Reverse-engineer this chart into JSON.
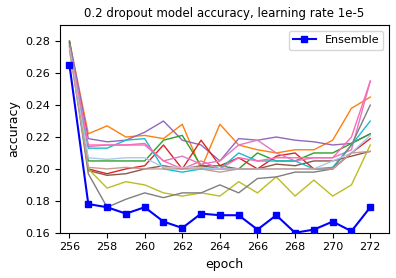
{
  "title": "0.2 dropout model accuracy, learning rate 1e-5",
  "xlabel": "epoch",
  "ylabel": "accuracy",
  "xlim": [
    255.5,
    273.0
  ],
  "ylim": [
    0.16,
    0.29
  ],
  "yticks": [
    0.16,
    0.18,
    0.2,
    0.22,
    0.24,
    0.26,
    0.28
  ],
  "xticks": [
    256,
    258,
    260,
    262,
    264,
    266,
    268,
    270,
    272
  ],
  "epochs": [
    256,
    257,
    258,
    259,
    260,
    261,
    262,
    263,
    264,
    265,
    266,
    267,
    268,
    269,
    270,
    271,
    272
  ],
  "ensemble": [
    0.265,
    0.178,
    0.176,
    0.172,
    0.176,
    0.167,
    0.163,
    0.172,
    0.171,
    0.171,
    0.162,
    0.171,
    0.16,
    0.162,
    0.167,
    0.161,
    0.176
  ],
  "individual_lines": [
    {
      "color": "#ff7f0e",
      "values": [
        0.28,
        0.222,
        0.227,
        0.22,
        0.221,
        0.219,
        0.228,
        0.2,
        0.228,
        0.215,
        0.212,
        0.21,
        0.212,
        0.212,
        0.218,
        0.238,
        0.245
      ]
    },
    {
      "color": "#9467bd",
      "values": [
        0.28,
        0.219,
        0.217,
        0.218,
        0.223,
        0.23,
        0.218,
        0.215,
        0.205,
        0.219,
        0.218,
        0.22,
        0.218,
        0.217,
        0.215,
        0.216,
        0.222
      ]
    },
    {
      "color": "#2ca02c",
      "values": [
        0.28,
        0.205,
        0.205,
        0.205,
        0.205,
        0.218,
        0.221,
        0.202,
        0.202,
        0.2,
        0.21,
        0.205,
        0.205,
        0.21,
        0.21,
        0.216,
        0.222
      ]
    },
    {
      "color": "#d62728",
      "values": [
        0.279,
        0.2,
        0.197,
        0.2,
        0.202,
        0.215,
        0.2,
        0.218,
        0.202,
        0.207,
        0.2,
        0.208,
        0.21,
        0.2,
        0.2,
        0.21,
        0.219
      ]
    },
    {
      "color": "#8c564b",
      "values": [
        0.279,
        0.199,
        0.196,
        0.197,
        0.2,
        0.202,
        0.2,
        0.202,
        0.2,
        0.2,
        0.2,
        0.203,
        0.202,
        0.205,
        0.205,
        0.208,
        0.211
      ]
    },
    {
      "color": "#e377c2",
      "values": [
        0.278,
        0.214,
        0.215,
        0.215,
        0.215,
        0.205,
        0.208,
        0.203,
        0.205,
        0.215,
        0.218,
        0.21,
        0.205,
        0.207,
        0.207,
        0.212,
        0.255
      ]
    },
    {
      "color": "#17becf",
      "values": [
        0.278,
        0.213,
        0.213,
        0.218,
        0.219,
        0.2,
        0.198,
        0.2,
        0.2,
        0.21,
        0.205,
        0.205,
        0.205,
        0.2,
        0.201,
        0.215,
        0.23
      ]
    },
    {
      "color": "#bcbd22",
      "values": [
        0.277,
        0.2,
        0.188,
        0.192,
        0.19,
        0.185,
        0.183,
        0.185,
        0.183,
        0.192,
        0.185,
        0.195,
        0.183,
        0.193,
        0.183,
        0.19,
        0.215
      ]
    },
    {
      "color": "#7f7f7f",
      "values": [
        0.277,
        0.197,
        0.176,
        0.181,
        0.185,
        0.182,
        0.185,
        0.185,
        0.19,
        0.185,
        0.194,
        0.195,
        0.198,
        0.198,
        0.2,
        0.215,
        0.24
      ]
    },
    {
      "color": "#ff69b4",
      "values": [
        0.276,
        0.215,
        0.215,
        0.215,
        0.216,
        0.205,
        0.2,
        0.205,
        0.2,
        0.207,
        0.205,
        0.207,
        0.207,
        0.207,
        0.207,
        0.22,
        0.255
      ]
    },
    {
      "color": "#aec7e8",
      "values": [
        0.275,
        0.207,
        0.206,
        0.207,
        0.207,
        0.201,
        0.201,
        0.201,
        0.2,
        0.2,
        0.2,
        0.2,
        0.2,
        0.2,
        0.205,
        0.21,
        0.221
      ]
    },
    {
      "color": "#c49c94",
      "values": [
        0.274,
        0.201,
        0.2,
        0.201,
        0.2,
        0.2,
        0.2,
        0.2,
        0.198,
        0.2,
        0.2,
        0.2,
        0.2,
        0.2,
        0.2,
        0.21,
        0.211
      ]
    }
  ],
  "ensemble_color": "#0000ff",
  "figsize": [
    3.96,
    2.78
  ],
  "dpi": 100
}
